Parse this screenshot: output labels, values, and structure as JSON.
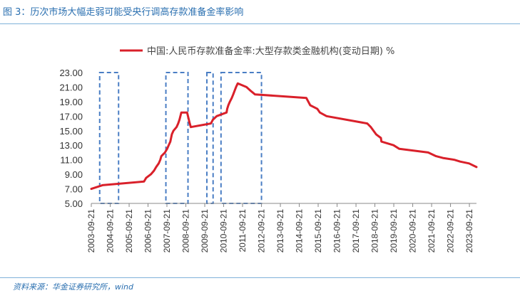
{
  "figure": {
    "title": "图 3：历次市场大幅走弱可能受央行调高存款准备金率影响",
    "source": "资料来源：华金证券研究所，wind"
  },
  "chart_data": {
    "type": "line",
    "title": "",
    "xlabel": "",
    "ylabel": "",
    "ylim": [
      5,
      23
    ],
    "yticks": [
      "23.00",
      "21.00",
      "19.00",
      "17.00",
      "15.00",
      "13.00",
      "11.00",
      "9.00",
      "7.00",
      "5.00"
    ],
    "x_tick_labels": [
      "2003-09-21",
      "2004-09-21",
      "2005-09-21",
      "2006-09-21",
      "2007-09-21",
      "2008-09-21",
      "2009-09-21",
      "2010-09-21",
      "2011-09-21",
      "2012-09-21",
      "2013-09-21",
      "2014-09-21",
      "2015-09-21",
      "2016-09-21",
      "2017-09-21",
      "2018-09-21",
      "2019-09-21",
      "2020-09-21",
      "2021-09-21",
      "2022-09-21",
      "2023-09-21"
    ],
    "legend_position": "top",
    "grid": false,
    "series": [
      {
        "name": "中国:人民币存款准备金率:大型存款类金融机构(变动日期) %",
        "color": "#d9202a",
        "points": [
          [
            "2003-09-21",
            7.0
          ],
          [
            "2004-04-25",
            7.5
          ],
          [
            "2006-07-05",
            8.0
          ],
          [
            "2006-08-15",
            8.5
          ],
          [
            "2006-11-15",
            9.0
          ],
          [
            "2007-01-15",
            9.5
          ],
          [
            "2007-02-25",
            10.0
          ],
          [
            "2007-04-16",
            10.5
          ],
          [
            "2007-05-15",
            11.0
          ],
          [
            "2007-06-05",
            11.5
          ],
          [
            "2007-08-15",
            12.0
          ],
          [
            "2007-09-25",
            12.5
          ],
          [
            "2007-10-25",
            13.0
          ],
          [
            "2007-11-26",
            13.5
          ],
          [
            "2007-12-25",
            14.5
          ],
          [
            "2008-01-25",
            15.0
          ],
          [
            "2008-03-25",
            15.5
          ],
          [
            "2008-04-25",
            16.0
          ],
          [
            "2008-05-20",
            16.5
          ],
          [
            "2008-06-25",
            17.5
          ],
          [
            "2008-10-15",
            17.5
          ],
          [
            "2008-12-05",
            16.0
          ],
          [
            "2008-12-25",
            15.5
          ],
          [
            "2010-01-18",
            16.0
          ],
          [
            "2010-02-25",
            16.5
          ],
          [
            "2010-05-10",
            17.0
          ],
          [
            "2010-11-16",
            17.5
          ],
          [
            "2010-11-29",
            18.0
          ],
          [
            "2010-12-20",
            18.5
          ],
          [
            "2011-01-20",
            19.0
          ],
          [
            "2011-02-24",
            19.5
          ],
          [
            "2011-03-25",
            20.0
          ],
          [
            "2011-04-21",
            20.5
          ],
          [
            "2011-05-18",
            21.0
          ],
          [
            "2011-06-20",
            21.5
          ],
          [
            "2011-12-05",
            21.0
          ],
          [
            "2012-02-24",
            20.5
          ],
          [
            "2012-05-18",
            20.0
          ],
          [
            "2015-02-05",
            19.5
          ],
          [
            "2015-04-20",
            18.5
          ],
          [
            "2015-09-06",
            18.0
          ],
          [
            "2015-10-24",
            17.5
          ],
          [
            "2016-03-01",
            17.0
          ],
          [
            "2018-04-25",
            16.0
          ],
          [
            "2018-07-05",
            15.5
          ],
          [
            "2018-10-15",
            14.5
          ],
          [
            "2019-01-15",
            14.0
          ],
          [
            "2019-01-25",
            13.5
          ],
          [
            "2019-09-16",
            13.0
          ],
          [
            "2020-01-06",
            12.5
          ],
          [
            "2021-07-15",
            12.0
          ],
          [
            "2021-12-15",
            11.5
          ],
          [
            "2022-04-25",
            11.25
          ],
          [
            "2022-12-05",
            11.0
          ],
          [
            "2023-03-27",
            10.75
          ],
          [
            "2023-09-15",
            10.5
          ],
          [
            "2024-02-05",
            10.0
          ]
        ]
      }
    ],
    "highlight_periods": [
      {
        "start": "2004-03-01",
        "end": "2005-03-01",
        "y_top": 23.0,
        "y_bottom": 5.0
      },
      {
        "start": "2007-09-01",
        "end": "2008-11-01",
        "y_top": 23.0,
        "y_bottom": 5.0
      },
      {
        "start": "2009-11-01",
        "end": "2010-03-01",
        "y_top": 23.0,
        "y_bottom": 5.0
      },
      {
        "start": "2010-08-01",
        "end": "2012-09-21",
        "y_top": 23.0,
        "y_bottom": 5.0
      }
    ],
    "highlight_color": "#4a7ec4"
  }
}
